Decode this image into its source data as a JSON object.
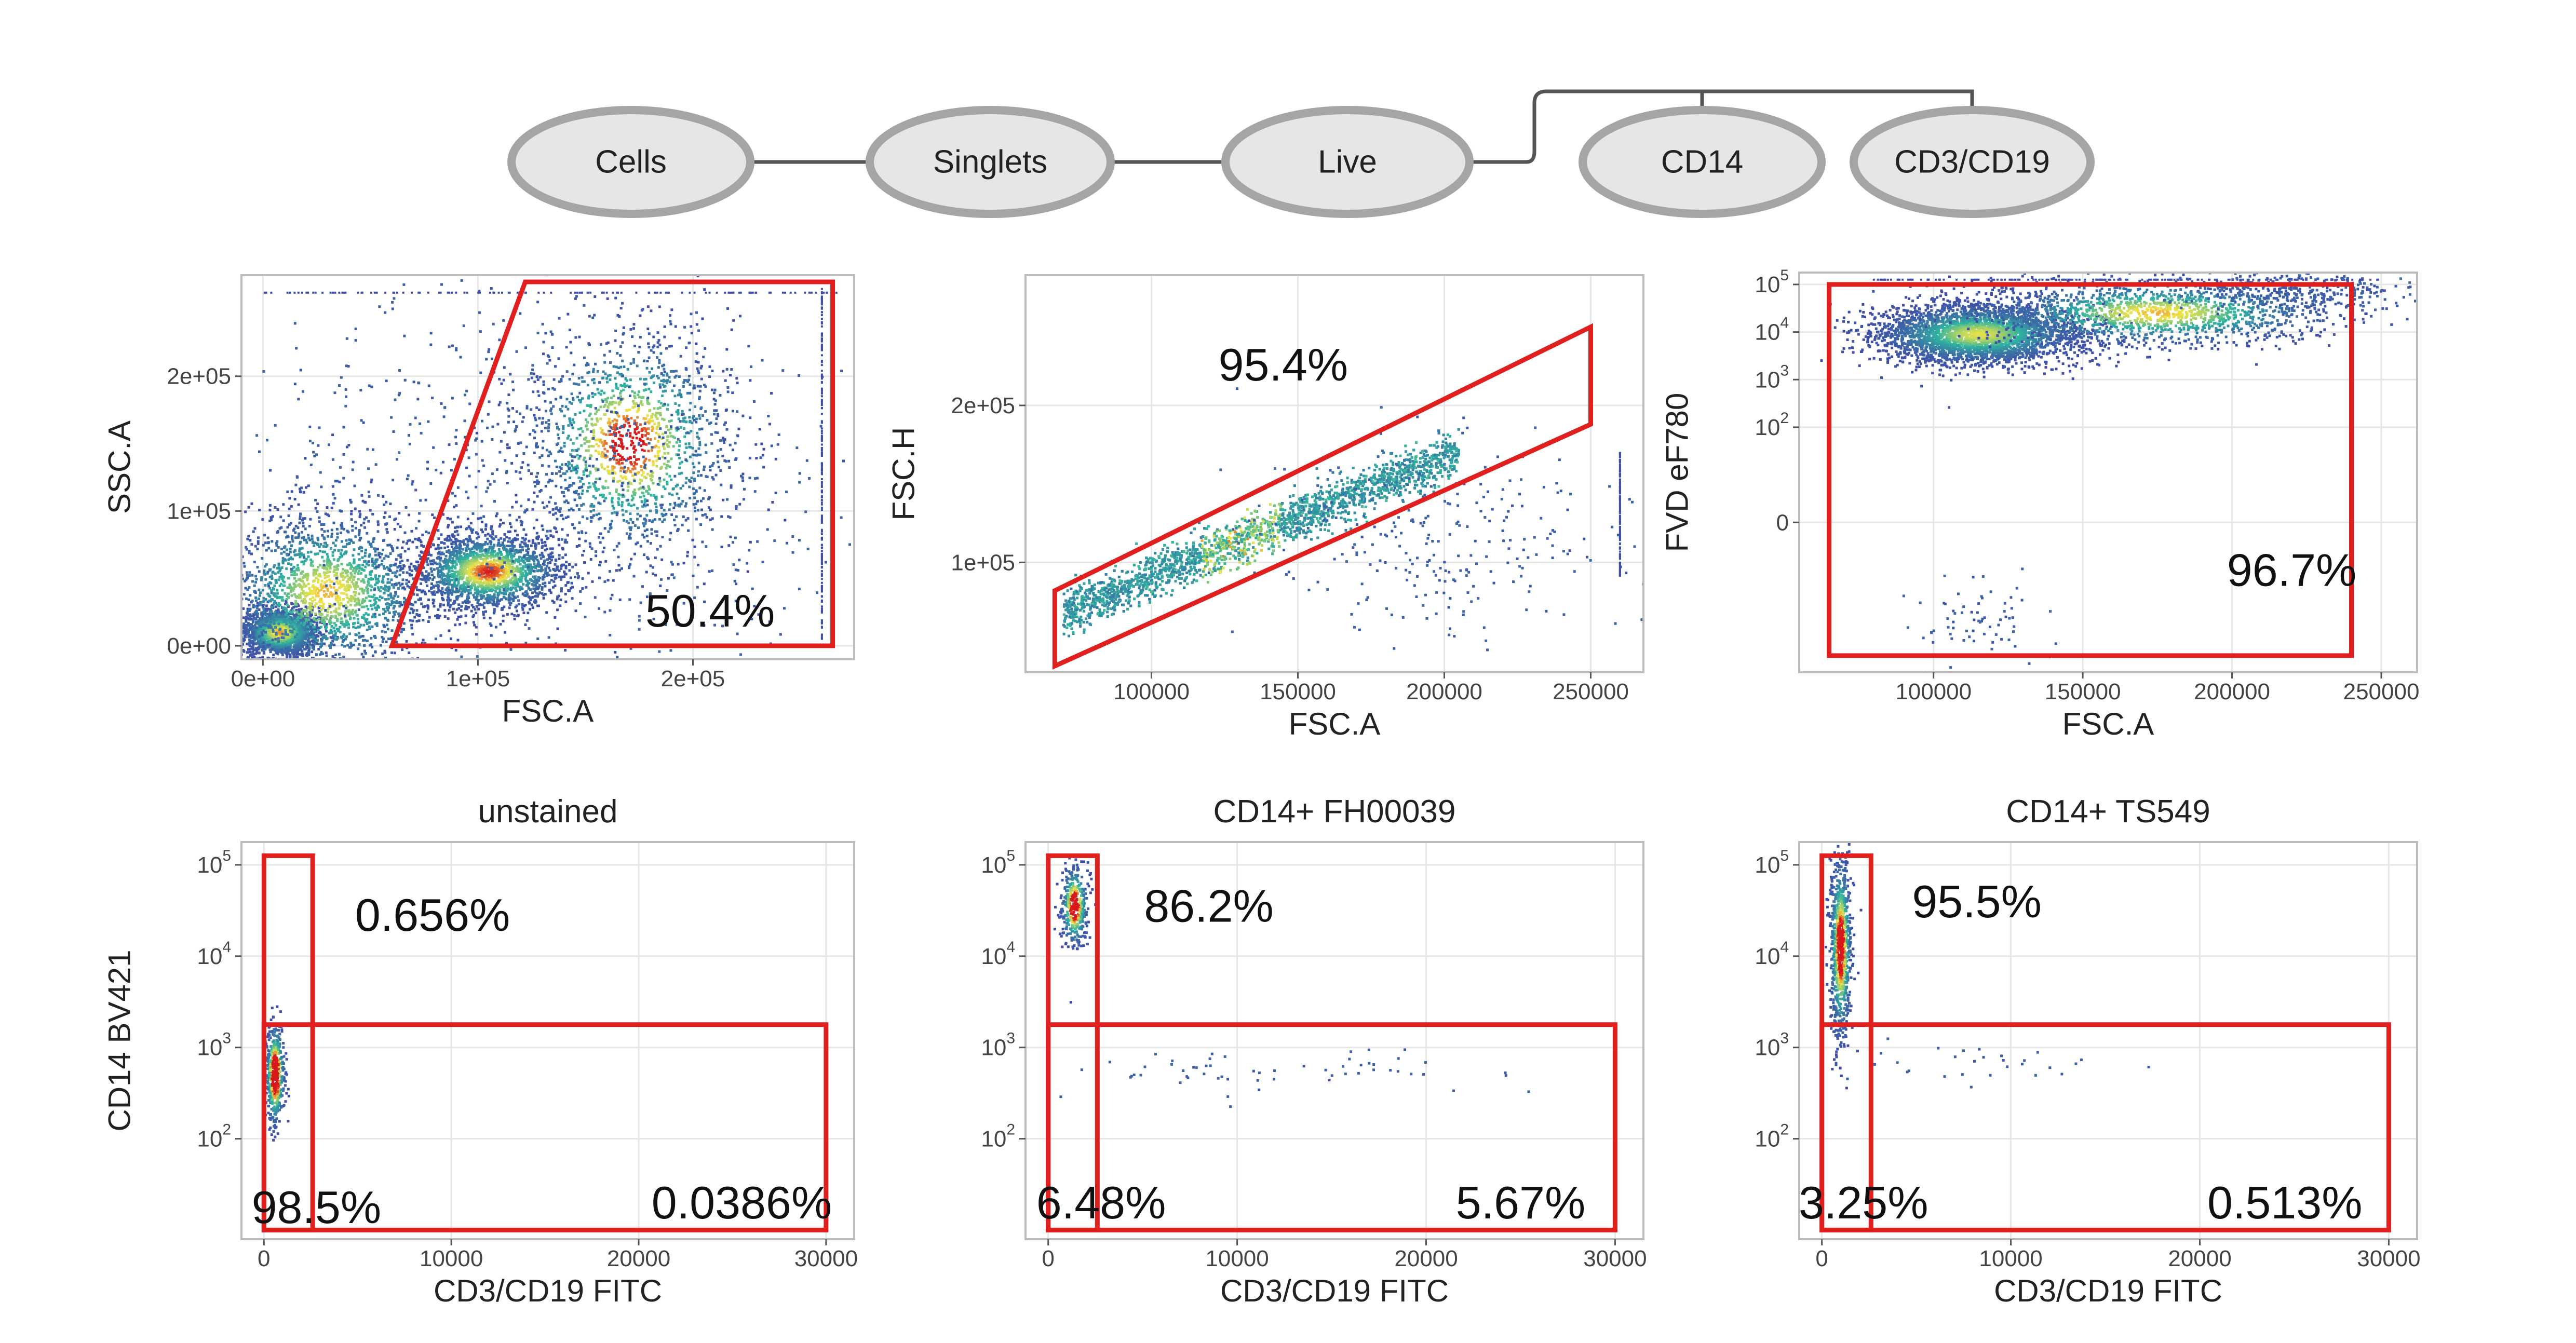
{
  "gating_tree": {
    "nodes": [
      "Cells",
      "Singlets",
      "Live",
      "CD14",
      "CD3/CD19"
    ],
    "edges": [
      [
        "Cells",
        "Singlets"
      ],
      [
        "Singlets",
        "Live"
      ],
      [
        "Live",
        "CD14"
      ],
      [
        "Live",
        "CD3/CD19"
      ]
    ]
  },
  "colors": {
    "gate": "#e0201f",
    "node_fill": "#e6e6e6",
    "node_stroke": "#a5a5a5",
    "connector": "#555555",
    "grid": "#e6e6e6",
    "frame": "#bdbdbd",
    "density_low": "#3f4fa8",
    "density_mid": "#2fb3a0",
    "density_high": "#d7191c"
  },
  "chart_data": [
    {
      "id": "cells",
      "type": "scatter",
      "title": "",
      "xlabel": "FSC.A",
      "ylabel": "SSC.A",
      "xlim": [
        -10000,
        275000
      ],
      "ylim": [
        -10000,
        275000
      ],
      "xticks": [
        {
          "v": 0,
          "label": "0e+00"
        },
        {
          "v": 100000,
          "label": "1e+05"
        },
        {
          "v": 200000,
          "label": "2e+05"
        }
      ],
      "yticks": [
        {
          "v": 0,
          "label": "0e+00"
        },
        {
          "v": 100000,
          "label": "1e+05"
        },
        {
          "v": 200000,
          "label": "2e+05"
        }
      ],
      "gates": [
        {
          "shape": "polygon",
          "points": [
            [
              60000,
              0
            ],
            [
              265000,
              0
            ],
            [
              265000,
              270000
            ],
            [
              122000,
              270000
            ]
          ]
        }
      ],
      "annotations": [
        {
          "text": "50.4%",
          "x": 208000,
          "y": 26000
        }
      ],
      "populations": [
        {
          "cx": 8000,
          "cy": 10000,
          "sx": 9000,
          "sy": 9000,
          "n": 1800,
          "r": 0.22
        },
        {
          "cx": 30000,
          "cy": 40000,
          "sx": 25000,
          "sy": 30000,
          "n": 1800,
          "r": 0.2
        },
        {
          "cx": 105000,
          "cy": 55000,
          "sx": 17000,
          "sy": 14000,
          "n": 1800,
          "r": 0.3
        },
        {
          "cx": 170000,
          "cy": 150000,
          "sx": 24000,
          "sy": 42000,
          "n": 1400,
          "r": 0.35
        },
        {
          "cx": 130000,
          "cy": 120000,
          "sx": 70000,
          "sy": 70000,
          "n": 900,
          "r": 0
        }
      ],
      "edge_streaks": [
        {
          "axis": "x",
          "at": 260000,
          "from": 5000,
          "to": 265000,
          "n": 200
        },
        {
          "axis": "y",
          "at": 262000,
          "from": 0,
          "to": 270000,
          "n": 120
        }
      ]
    },
    {
      "id": "singlets",
      "type": "scatter",
      "title": "",
      "xlabel": "FSC.A",
      "ylabel": "FSC.H",
      "xlim": [
        57000,
        268000
      ],
      "ylim": [
        30000,
        283000
      ],
      "xticks": [
        {
          "v": 100000,
          "label": "100000"
        },
        {
          "v": 150000,
          "label": "150000"
        },
        {
          "v": 200000,
          "label": "200000"
        },
        {
          "v": 250000,
          "label": "250000"
        }
      ],
      "yticks": [
        {
          "v": 100000,
          "label": "1e+05"
        },
        {
          "v": 200000,
          "label": "2e+05"
        }
      ],
      "gates": [
        {
          "shape": "polygon",
          "points": [
            [
              67000,
              82000
            ],
            [
              250000,
              250000
            ],
            [
              250000,
              188000
            ],
            [
              67000,
              34000
            ]
          ]
        }
      ],
      "annotations": [
        {
          "text": "95.4%",
          "x": 145000,
          "y": 226000
        }
      ],
      "populations": [
        {
          "line": true,
          "x0": 70000,
          "x1": 205000,
          "y0": 68000,
          "y1": 170000,
          "spread": 7000,
          "n": 4200,
          "hot": [
            0.35,
            0.55
          ]
        },
        {
          "cx": 200000,
          "cy": 115000,
          "sx": 30000,
          "sy": 30000,
          "n": 260,
          "r": 0
        }
      ],
      "edge_streaks": [
        {
          "axis": "x",
          "at": 260000,
          "from": 90000,
          "to": 170000,
          "n": 140
        }
      ]
    },
    {
      "id": "live",
      "type": "scatter",
      "title": "",
      "xlabel": "FSC.A",
      "ylabel": "FVD eF780",
      "xlim": [
        55000,
        262000
      ],
      "ylim": [
        -3.15,
        5.25
      ],
      "yscale": "biex",
      "xticks": [
        {
          "v": 100000,
          "label": "100000"
        },
        {
          "v": 150000,
          "label": "150000"
        },
        {
          "v": 200000,
          "label": "200000"
        },
        {
          "v": 250000,
          "label": "250000"
        }
      ],
      "yticks": [
        {
          "v": 0,
          "label": "0"
        },
        {
          "v": 2,
          "label": "10",
          "sup": "2"
        },
        {
          "v": 3,
          "label": "10",
          "sup": "3"
        },
        {
          "v": 4,
          "label": "10",
          "sup": "4"
        },
        {
          "v": 5,
          "label": "10",
          "sup": "5"
        }
      ],
      "gates": [
        {
          "shape": "rect",
          "x0": 65000,
          "x1": 240000,
          "y0": -2.8,
          "y1": 5.0
        }
      ],
      "annotations": [
        {
          "text": "96.7%",
          "x": 220000,
          "y": -1.0
        }
      ],
      "populations": [
        {
          "cx": 115000,
          "cy": 3.95,
          "sx": 17000,
          "sy": 0.32,
          "n": 3200,
          "r": 0.15
        },
        {
          "cx": 175000,
          "cy": 4.4,
          "sx": 30000,
          "sy": 0.35,
          "n": 1500,
          "r": 0.2
        },
        {
          "cx": 225000,
          "cy": 4.85,
          "sx": 20000,
          "sy": 0.2,
          "n": 300,
          "r": 0
        },
        {
          "cx": 112000,
          "cy": -2.1,
          "sx": 12000,
          "sy": 0.45,
          "n": 70,
          "r": 0
        }
      ],
      "edge_streaks": [
        {
          "axis": "y",
          "at": 5.1,
          "from": 80000,
          "to": 250000,
          "n": 160
        }
      ]
    },
    {
      "id": "unstained",
      "type": "scatter",
      "title": "unstained",
      "xlabel": "CD3/CD19 FITC",
      "ylabel": "CD14 BV421",
      "xlim": [
        -1200,
        31500
      ],
      "ylim": [
        0.9,
        5.25
      ],
      "yscale": "log",
      "xticks": [
        {
          "v": 0,
          "label": "0"
        },
        {
          "v": 10000,
          "label": "10000"
        },
        {
          "v": 20000,
          "label": "20000"
        },
        {
          "v": 30000,
          "label": "30000"
        }
      ],
      "yticks": [
        {
          "v": 2,
          "label": "10",
          "sup": "2"
        },
        {
          "v": 3,
          "label": "10",
          "sup": "3"
        },
        {
          "v": 4,
          "label": "10",
          "sup": "4"
        },
        {
          "v": 5,
          "label": "10",
          "sup": "5"
        }
      ],
      "gates": [
        {
          "shape": "rect",
          "x0": 0,
          "x1": 2600,
          "y0": 1.0,
          "y1": 5.1
        },
        {
          "shape": "rect",
          "x0": 0,
          "x1": 30000,
          "y0": 1.0,
          "y1": 3.25
        }
      ],
      "annotations": [
        {
          "text": "0.656%",
          "x": 9000,
          "y": 4.45
        },
        {
          "text": "98.5%",
          "x": 2800,
          "y": 1.25
        },
        {
          "text": "0.0386%",
          "x": 25500,
          "y": 1.3
        }
      ],
      "populations": [
        {
          "cx": 600,
          "cy": 2.7,
          "sx": 250,
          "sy": 0.28,
          "n": 500,
          "r": 0.75
        }
      ],
      "edge_streaks": []
    },
    {
      "id": "fh00039",
      "type": "scatter",
      "title": "CD14+ FH00039",
      "xlabel": "CD3/CD19 FITC",
      "ylabel": "",
      "xlim": [
        -1200,
        31500
      ],
      "ylim": [
        0.9,
        5.25
      ],
      "yscale": "log",
      "xticks": [
        {
          "v": 0,
          "label": "0"
        },
        {
          "v": 10000,
          "label": "10000"
        },
        {
          "v": 20000,
          "label": "20000"
        },
        {
          "v": 30000,
          "label": "30000"
        }
      ],
      "yticks": [
        {
          "v": 2,
          "label": "10",
          "sup": "2"
        },
        {
          "v": 3,
          "label": "10",
          "sup": "3"
        },
        {
          "v": 4,
          "label": "10",
          "sup": "4"
        },
        {
          "v": 5,
          "label": "10",
          "sup": "5"
        }
      ],
      "gates": [
        {
          "shape": "rect",
          "x0": 0,
          "x1": 2600,
          "y0": 1.0,
          "y1": 5.1
        },
        {
          "shape": "rect",
          "x0": 0,
          "x1": 30000,
          "y0": 1.0,
          "y1": 3.25
        }
      ],
      "annotations": [
        {
          "text": "86.2%",
          "x": 8500,
          "y": 4.55
        },
        {
          "text": "6.48%",
          "x": 2800,
          "y": 1.3
        },
        {
          "text": "5.67%",
          "x": 25000,
          "y": 1.3
        }
      ],
      "populations": [
        {
          "cx": 1400,
          "cy": 4.55,
          "sx": 350,
          "sy": 0.22,
          "n": 380,
          "r": 0.6
        },
        {
          "cx": 12000,
          "cy": 2.75,
          "sx": 7000,
          "sy": 0.12,
          "n": 60,
          "r": 0
        }
      ],
      "edge_streaks": []
    },
    {
      "id": "ts549",
      "type": "scatter",
      "title": "CD14+ TS549",
      "xlabel": "CD3/CD19 FITC",
      "ylabel": "",
      "xlim": [
        -1200,
        31500
      ],
      "ylim": [
        0.9,
        5.25
      ],
      "yscale": "log",
      "xticks": [
        {
          "v": 0,
          "label": "0"
        },
        {
          "v": 10000,
          "label": "10000"
        },
        {
          "v": 20000,
          "label": "20000"
        },
        {
          "v": 30000,
          "label": "30000"
        }
      ],
      "yticks": [
        {
          "v": 2,
          "label": "10",
          "sup": "2"
        },
        {
          "v": 3,
          "label": "10",
          "sup": "3"
        },
        {
          "v": 4,
          "label": "10",
          "sup": "4"
        },
        {
          "v": 5,
          "label": "10",
          "sup": "5"
        }
      ],
      "gates": [
        {
          "shape": "rect",
          "x0": 0,
          "x1": 2600,
          "y0": 1.0,
          "y1": 5.1
        },
        {
          "shape": "rect",
          "x0": 0,
          "x1": 30000,
          "y0": 1.0,
          "y1": 3.25
        }
      ],
      "annotations": [
        {
          "text": "95.5%",
          "x": 8200,
          "y": 4.6
        },
        {
          "text": "3.25%",
          "x": 2200,
          "y": 1.3
        },
        {
          "text": "0.513%",
          "x": 24500,
          "y": 1.3
        }
      ],
      "populations": [
        {
          "cx": 1000,
          "cy": 4.1,
          "sx": 280,
          "sy": 0.5,
          "n": 900,
          "r": 0.55
        },
        {
          "cx": 9000,
          "cy": 2.8,
          "sx": 5000,
          "sy": 0.12,
          "n": 30,
          "r": 0
        }
      ],
      "edge_streaks": []
    }
  ]
}
